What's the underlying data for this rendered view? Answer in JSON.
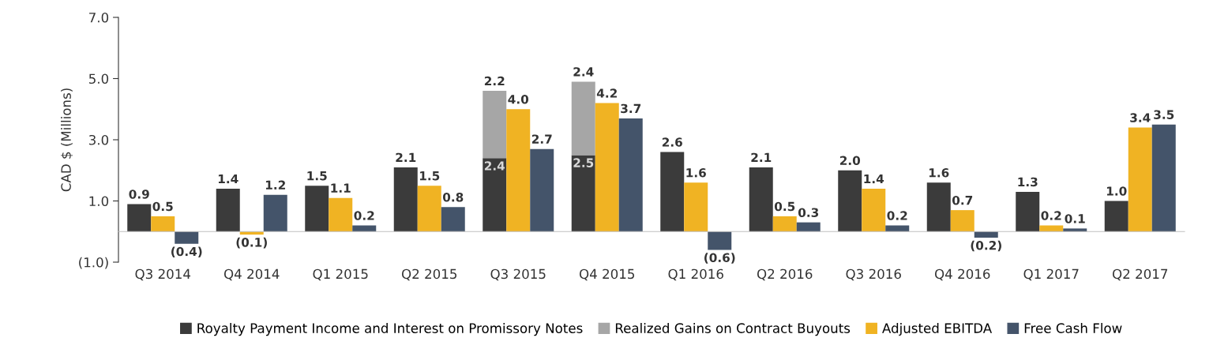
{
  "chart_data": {
    "type": "bar",
    "ylabel": "CAD $ (Millions)",
    "categories": [
      "Q3 2014",
      "Q4 2014",
      "Q1 2015",
      "Q2 2015",
      "Q3 2015",
      "Q4 2015",
      "Q1 2016",
      "Q2 2016",
      "Q3 2016",
      "Q4 2016",
      "Q1 2017",
      "Q2 2017"
    ],
    "series": [
      {
        "name": "Royalty Payment Income and Interest on Promissory Notes",
        "color": "#3b3b3b",
        "values": [
          0.9,
          1.4,
          1.5,
          2.1,
          2.4,
          2.5,
          2.6,
          2.1,
          2.0,
          1.6,
          1.3,
          1.0
        ],
        "value_labels": [
          "0.9",
          "1.4",
          "1.5",
          "2.1",
          "2.4",
          "2.5",
          "2.6",
          "2.1",
          "2.0",
          "1.6",
          "1.3",
          "1.0"
        ]
      },
      {
        "name": "Realized Gains on Contract Buyouts",
        "color": "#a6a6a6",
        "values": [
          null,
          null,
          null,
          null,
          2.2,
          2.4,
          null,
          null,
          null,
          null,
          null,
          null
        ],
        "base": [
          null,
          null,
          null,
          null,
          2.4,
          2.5,
          null,
          null,
          null,
          null,
          null,
          null
        ],
        "value_labels": [
          null,
          null,
          null,
          null,
          "2.2",
          "2.4",
          null,
          null,
          null,
          null,
          null,
          null
        ]
      },
      {
        "name": "Adjusted EBITDA",
        "color": "#f0b323",
        "values": [
          0.5,
          -0.1,
          1.1,
          1.5,
          4.0,
          4.2,
          1.6,
          0.5,
          1.4,
          0.7,
          0.2,
          3.4
        ],
        "value_labels": [
          "0.5",
          "(0.1)",
          "1.1",
          "1.5",
          "4.0",
          "4.2",
          "1.6",
          "0.5",
          "1.4",
          "0.7",
          "0.2",
          "3.4"
        ]
      },
      {
        "name": "Free Cash Flow",
        "color": "#44546a",
        "values": [
          -0.4,
          1.2,
          0.2,
          0.8,
          2.7,
          3.7,
          -0.6,
          0.3,
          0.2,
          -0.2,
          0.1,
          3.5
        ],
        "value_labels": [
          "(0.4)",
          "1.2",
          "0.2",
          "0.8",
          "2.7",
          "3.7",
          "(0.6)",
          "0.3",
          "0.2",
          "(0.2)",
          "0.1",
          "3.5"
        ]
      }
    ],
    "ylim": [
      -1.0,
      7.0
    ],
    "yticks": [
      {
        "value": -1.0,
        "label": "(1.0)"
      },
      {
        "value": 1.0,
        "label": "1.0"
      },
      {
        "value": 3.0,
        "label": "3.0"
      },
      {
        "value": 5.0,
        "label": "5.0"
      },
      {
        "value": 7.0,
        "label": "7.0"
      }
    ],
    "grid": false,
    "legend": "bottom"
  }
}
